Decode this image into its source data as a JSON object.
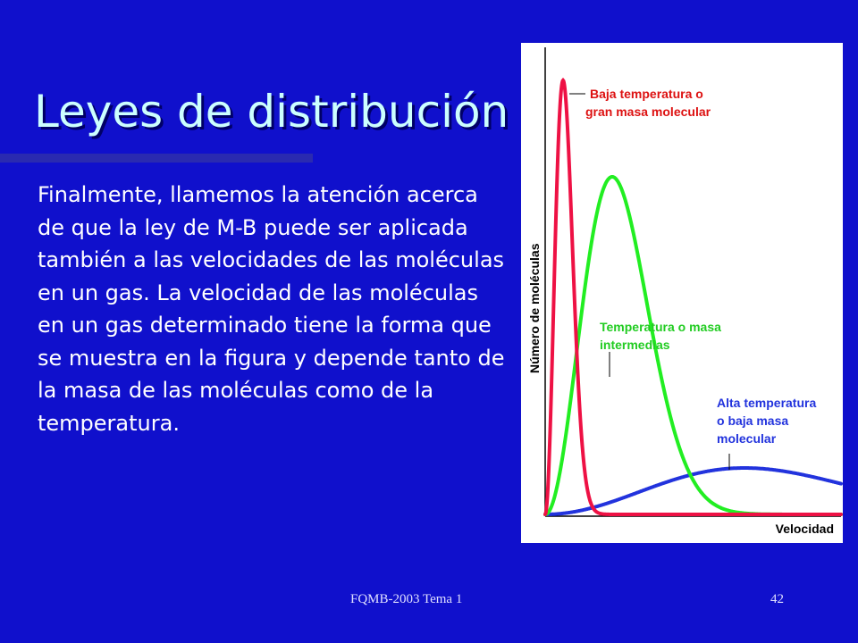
{
  "slide": {
    "title": "Leyes de distribución",
    "body": "Finalmente, llamemos la atención acerca de que la ley de M-B puede ser aplicada también a las velocidades de las moléculas en un gas. La velocidad de las moléculas en un gas determinado tiene la forma que se muestra en la figura y depende tanto de la masa de las moléculas como de la temperatura.",
    "footer": "FQMB-2003  Tema 1",
    "page_number": "42"
  },
  "figure": {
    "y_axis_label": "Número de moléculas",
    "x_axis_label": "Velocidad",
    "curves": [
      {
        "name": "low",
        "color": "#ee1144",
        "label_lines": [
          "Baja temperatura o",
          "gran masa molecular"
        ]
      },
      {
        "name": "mid",
        "color": "#22ee22",
        "label_lines": [
          "Temperatura o masa",
          "intermedias"
        ]
      },
      {
        "name": "high",
        "color": "#2233dd",
        "label_lines": [
          "Alta temperatura",
          "o baja masa",
          "molecular"
        ]
      }
    ]
  },
  "colors": {
    "background": "#1010cc",
    "title": "#ccffff",
    "label_low": "#dd1111",
    "label_mid": "#22cc22",
    "label_high": "#2233dd"
  }
}
